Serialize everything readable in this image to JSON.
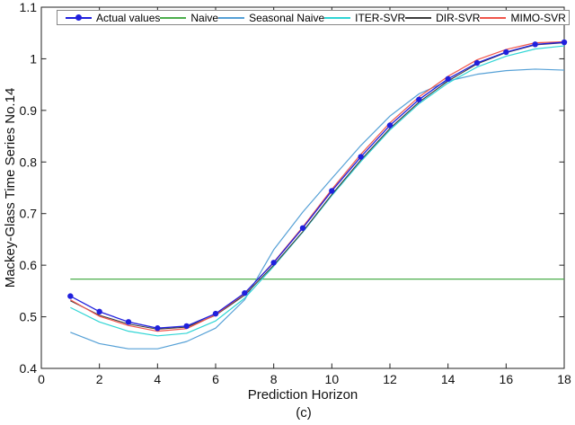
{
  "figure": {
    "caption": "(c)"
  },
  "colors": {
    "background": "#ffffff",
    "axis": "#222222",
    "text": "#111111",
    "legend_border": "#878787"
  },
  "chart_data": {
    "type": "line",
    "title": "",
    "xlabel": "Prediction Horizon",
    "ylabel": "Mackey-Glass Time Series No.14",
    "xlim": [
      0,
      18
    ],
    "ylim": [
      0.4,
      1.1
    ],
    "xticks": [
      0,
      2,
      4,
      6,
      8,
      10,
      12,
      14,
      16,
      18
    ],
    "yticks": [
      0.4,
      0.5,
      0.6,
      0.7,
      0.8,
      0.9,
      1,
      1.1
    ],
    "grid": false,
    "legend_position": "top-inside-horizontal",
    "x": [
      1,
      2,
      3,
      4,
      5,
      6,
      7,
      8,
      9,
      10,
      11,
      12,
      13,
      14,
      15,
      16,
      17,
      18
    ],
    "series": [
      {
        "name": "Actual values",
        "color": "#2020dd",
        "marker": "circle",
        "line_width": 1.3,
        "values": [
          0.54,
          0.51,
          0.49,
          0.478,
          0.482,
          0.506,
          0.546,
          0.605,
          0.672,
          0.744,
          0.81,
          0.871,
          0.921,
          0.961,
          0.992,
          1.013,
          1.028,
          1.032
        ]
      },
      {
        "name": "Naive",
        "color": "#4cae4c",
        "marker": "none",
        "line_width": 1.2,
        "values": [
          0.573,
          0.573,
          0.573,
          0.573,
          0.573,
          0.573,
          0.573,
          0.573,
          0.573,
          0.573,
          0.573,
          0.573,
          0.573,
          0.573,
          0.573,
          0.573,
          0.573,
          0.573
        ]
      },
      {
        "name": "Seasonal Naive",
        "color": "#55a0d6",
        "marker": "none",
        "line_width": 1.2,
        "values": [
          0.47,
          0.448,
          0.438,
          0.438,
          0.452,
          0.478,
          0.533,
          0.63,
          0.703,
          0.768,
          0.832,
          0.889,
          0.932,
          0.957,
          0.97,
          0.977,
          0.98,
          0.978
        ]
      },
      {
        "name": "ITER-SVR",
        "color": "#30d5d5",
        "marker": "none",
        "line_width": 1.2,
        "values": [
          0.518,
          0.49,
          0.472,
          0.463,
          0.468,
          0.492,
          0.536,
          0.598,
          0.664,
          0.735,
          0.801,
          0.862,
          0.913,
          0.953,
          0.984,
          1.005,
          1.019,
          1.025
        ]
      },
      {
        "name": "DIR-SVR",
        "color": "#3c3c3c",
        "marker": "none",
        "line_width": 1.1,
        "values": [
          0.531,
          0.503,
          0.486,
          0.476,
          0.48,
          0.503,
          0.542,
          0.6,
          0.665,
          0.737,
          0.804,
          0.865,
          0.916,
          0.957,
          0.99,
          1.012,
          1.027,
          1.031
        ]
      },
      {
        "name": "MIMO-SVR",
        "color": "#f0554b",
        "marker": "none",
        "line_width": 1.2,
        "values": [
          0.533,
          0.501,
          0.483,
          0.472,
          0.477,
          0.504,
          0.545,
          0.606,
          0.674,
          0.747,
          0.815,
          0.876,
          0.926,
          0.966,
          0.998,
          1.018,
          1.031,
          1.033
        ]
      }
    ]
  }
}
